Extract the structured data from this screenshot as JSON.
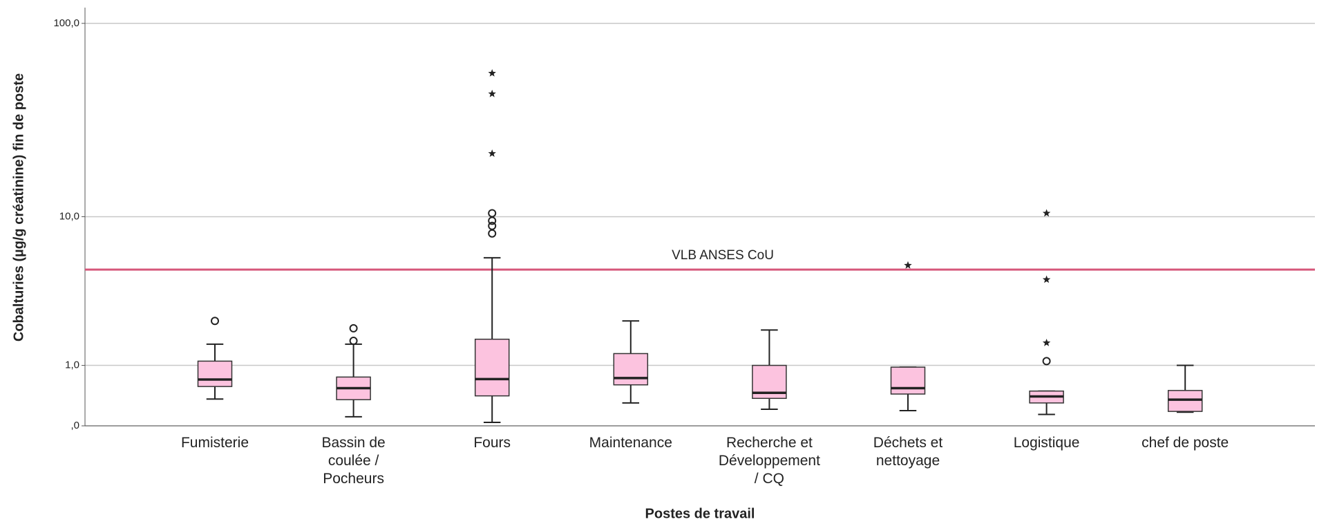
{
  "chart_data": {
    "type": "box",
    "y_label": "Cobalturies (µg/g créatinine) fin de poste",
    "x_label": "Postes de travail",
    "yscale": "log1p",
    "ylim": [
      0,
      120
    ],
    "yticks": [
      {
        "value": 0,
        "label": ",0"
      },
      {
        "value": 1,
        "label": "1,0"
      },
      {
        "value": 10,
        "label": "10,0"
      },
      {
        "value": 100,
        "label": "100,0"
      }
    ],
    "grid": true,
    "color": "#fcc3df",
    "categories": [
      "Fumisterie",
      "Bassin de\ncoulée /\nPocheurs",
      "Fours",
      "Maintenance",
      "Recherche et\nDéveloppement\n/ CQ",
      "Déchets et\nnettoyage",
      "Logistique",
      "chef de poste"
    ],
    "boxes": [
      {
        "min": 0.36,
        "q1": 0.57,
        "median": 0.7,
        "q3": 1.1,
        "max": 1.55,
        "outliers": [
          2.33
        ],
        "extremes": []
      },
      {
        "min": 0.11,
        "q1": 0.35,
        "median": 0.54,
        "q3": 0.75,
        "max": 1.55,
        "outliers": [
          2.06,
          1.65
        ],
        "extremes": []
      },
      {
        "min": 0.04,
        "q1": 0.41,
        "median": 0.71,
        "q3": 1.7,
        "max": 5.87,
        "outliers": [
          10.45,
          9.5,
          8.9,
          8.08
        ],
        "extremes": [
          56,
          44,
          21.7
        ]
      },
      {
        "min": 0.3,
        "q1": 0.6,
        "median": 0.73,
        "q3": 1.29,
        "max": 2.33,
        "outliers": [],
        "extremes": []
      },
      {
        "min": 0.21,
        "q1": 0.37,
        "median": 0.46,
        "q3": 1.0,
        "max": 2.0,
        "outliers": [],
        "extremes": []
      },
      {
        "min": 0.19,
        "q1": 0.44,
        "median": 0.54,
        "q3": 0.96,
        "max": 0.96,
        "outliers": [],
        "extremes": [
          5.3
        ]
      },
      {
        "min": 0.14,
        "q1": 0.3,
        "median": 0.4,
        "q3": 0.49,
        "max": 0.49,
        "outliers": [
          1.1
        ],
        "extremes": [
          10.45,
          4.35,
          1.59
        ]
      },
      {
        "min": 0.17,
        "q1": 0.18,
        "median": 0.35,
        "q3": 0.5,
        "max": 1.0,
        "outliers": [],
        "extremes": []
      }
    ],
    "reference_line": {
      "value": 5,
      "label": "VLB ANSES CoU",
      "color": "#d6567a"
    }
  }
}
